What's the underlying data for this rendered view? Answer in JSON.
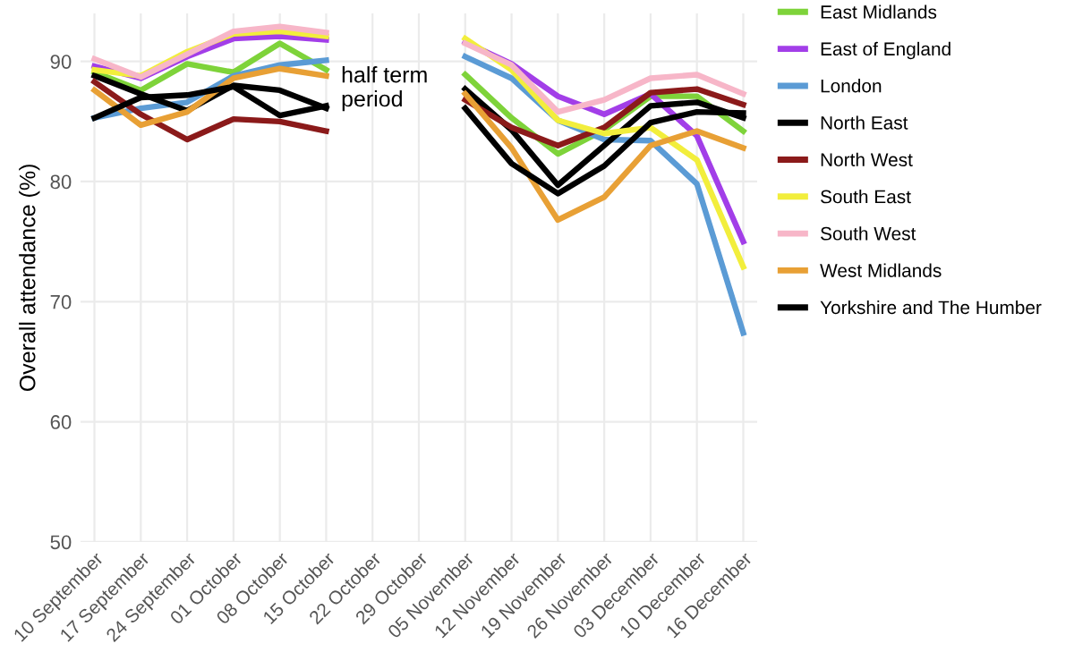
{
  "chart_data": {
    "type": "line",
    "ylabel": "Overall attendance (%)",
    "categories": [
      "10 September",
      "17 September",
      "24 September",
      "01 October",
      "08 October",
      "15 October",
      "22 October",
      "29 October",
      "05 November",
      "12 November",
      "19 November",
      "26 November",
      "03 December",
      "10 December",
      "16 December"
    ],
    "series": [
      {
        "name": "East Midlands",
        "color": "#7ed33a",
        "values": [
          89.1,
          87.6,
          89.8,
          89.1,
          91.5,
          89.3,
          null,
          null,
          88.9,
          85.3,
          82.3,
          84.3,
          87.1,
          87.1,
          84.2
        ]
      },
      {
        "name": "East of England",
        "color": "#a23ee8",
        "values": [
          89.6,
          88.6,
          90.4,
          91.9,
          92.1,
          91.8,
          null,
          null,
          91.6,
          89.8,
          87.1,
          85.6,
          87.3,
          83.8,
          75.0
        ]
      },
      {
        "name": "London",
        "color": "#5b9bd5",
        "values": [
          85.3,
          86.1,
          86.6,
          88.8,
          89.7,
          90.1,
          null,
          null,
          90.4,
          88.6,
          85.1,
          83.5,
          83.4,
          79.8,
          67.4
        ]
      },
      {
        "name": "North East",
        "color": "#000000",
        "values": [
          88.8,
          87.3,
          85.9,
          88.0,
          87.6,
          86.1,
          null,
          null,
          87.7,
          84.3,
          79.7,
          83.0,
          86.3,
          86.6,
          85.3
        ]
      },
      {
        "name": "North West",
        "color": "#8b1a1a",
        "values": [
          88.3,
          85.6,
          83.5,
          85.2,
          85.0,
          84.2,
          null,
          null,
          86.8,
          84.5,
          83.0,
          84.5,
          87.4,
          87.7,
          86.4
        ]
      },
      {
        "name": "South East",
        "color": "#f2ee3c",
        "values": [
          89.3,
          88.8,
          90.8,
          92.3,
          92.5,
          92.1,
          null,
          null,
          91.9,
          89.3,
          85.1,
          84.0,
          84.5,
          81.8,
          72.9
        ]
      },
      {
        "name": "South West",
        "color": "#f7b6c8",
        "values": [
          90.2,
          88.7,
          90.6,
          92.5,
          92.9,
          92.4,
          null,
          null,
          91.5,
          89.7,
          85.8,
          86.8,
          88.6,
          88.9,
          87.3
        ]
      },
      {
        "name": "West Midlands",
        "color": "#e8a035",
        "values": [
          87.6,
          84.7,
          85.8,
          88.6,
          89.4,
          88.8,
          null,
          null,
          87.3,
          82.8,
          76.8,
          78.7,
          83.0,
          84.2,
          82.8
        ]
      },
      {
        "name": "Yorkshire and The Humber",
        "color": "#000000",
        "values": [
          85.3,
          87.0,
          87.2,
          87.9,
          85.5,
          86.3,
          null,
          null,
          86.1,
          81.5,
          79.0,
          81.3,
          84.9,
          85.8,
          85.7
        ]
      }
    ],
    "ylim": [
      50,
      94
    ],
    "yticks": [
      50,
      60,
      70,
      80,
      90
    ],
    "grid": true,
    "legend": "right",
    "annotations": [
      "half term\nperiod"
    ]
  }
}
